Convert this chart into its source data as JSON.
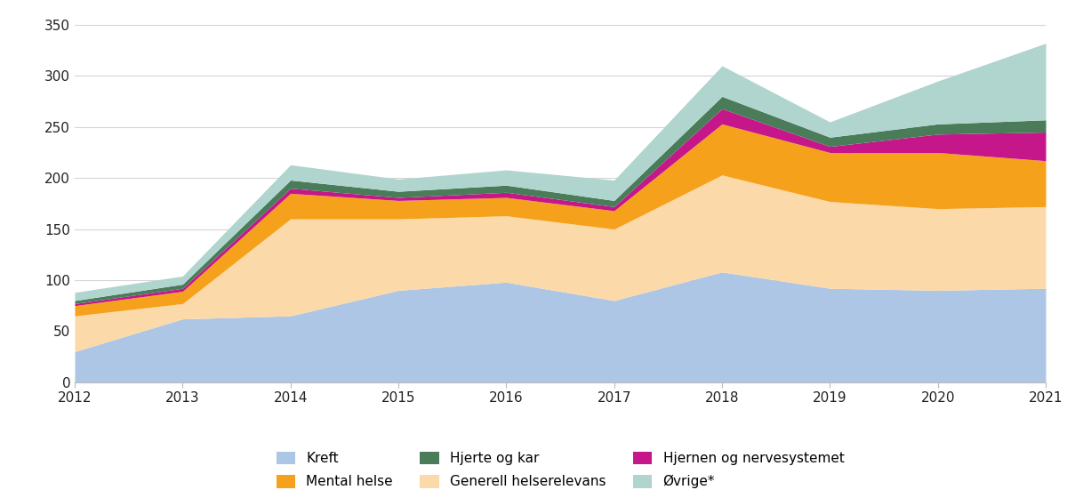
{
  "years": [
    2012,
    2013,
    2014,
    2015,
    2016,
    2017,
    2018,
    2019,
    2020,
    2021
  ],
  "kreft": [
    30,
    62,
    65,
    90,
    98,
    80,
    108,
    92,
    90,
    92
  ],
  "generell": [
    35,
    15,
    95,
    70,
    65,
    70,
    95,
    85,
    80,
    80
  ],
  "mental": [
    10,
    12,
    25,
    18,
    18,
    18,
    50,
    48,
    55,
    45
  ],
  "hjernen": [
    2,
    3,
    5,
    3,
    5,
    4,
    15,
    6,
    18,
    28
  ],
  "hjerte": [
    3,
    4,
    8,
    6,
    7,
    6,
    12,
    9,
    10,
    12
  ],
  "ovrige": [
    8,
    8,
    15,
    12,
    15,
    20,
    30,
    15,
    42,
    75
  ],
  "color_kreft": "#adc6e5",
  "color_generell": "#fcd9a8",
  "color_mental": "#f5a11c",
  "color_hjernen": "#c5178a",
  "color_hjerte": "#4a7c59",
  "color_ovrige": "#b0d5ce",
  "ylim": [
    0,
    360
  ],
  "yticks": [
    0,
    50,
    100,
    150,
    200,
    250,
    300,
    350
  ],
  "legend_row1": [
    [
      "Kreft",
      "#adc6e5"
    ],
    [
      "Mental helse",
      "#f5a11c"
    ],
    [
      "Hjerte og kar",
      "#4a7c59"
    ]
  ],
  "legend_row2": [
    [
      "Generell helserelevans",
      "#fcd9a8"
    ],
    [
      "Hjernen og nervesystemet",
      "#c5178a"
    ],
    [
      "Øvrige*",
      "#b0d5ce"
    ]
  ],
  "bg": "#ffffff",
  "grid_color": "#d5d5d5"
}
